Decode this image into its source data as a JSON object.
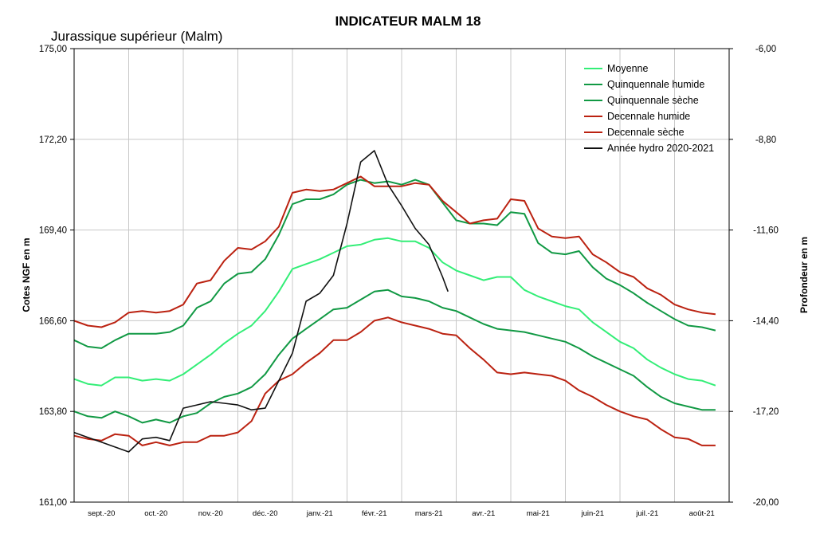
{
  "chart_data": {
    "type": "line",
    "title": "INDICATEUR MALM 18",
    "subtitle": "Jurassique supérieur (Malm)",
    "ylabel": "Cotes NGF en m",
    "y2label": "Profondeur en m",
    "ylim": [
      161,
      175
    ],
    "y2lim": [
      -20,
      -6
    ],
    "yticks": [
      "161,00",
      "163,80",
      "166,60",
      "169,40",
      "172,20",
      "175,00"
    ],
    "y2ticks": [
      "-20,00",
      "-17,20",
      "-14,40",
      "-11,60",
      "-8,80",
      "-6,00"
    ],
    "months": [
      "sept.-20",
      "oct.-20",
      "nov.-20",
      "déc.-20",
      "janv.-21",
      "févr.-21",
      "mars-21",
      "avr.-21",
      "mai-21",
      "juin-21",
      "juil.-21",
      "août-21"
    ],
    "x_range": [
      0,
      12
    ],
    "colors": {
      "moyenne": "#33ee77",
      "quinquennale": "#119944",
      "decennale": "#bb2211",
      "annee": "#111111",
      "grid": "#c8c8c8"
    },
    "series": [
      {
        "name": "Moyenne",
        "color": "#33ee77",
        "x": [
          0,
          0.25,
          0.5,
          0.75,
          1,
          1.25,
          1.5,
          1.75,
          2,
          2.25,
          2.5,
          2.75,
          3,
          3.25,
          3.5,
          3.75,
          4,
          4.25,
          4.5,
          4.75,
          5,
          5.25,
          5.5,
          5.75,
          6,
          6.25,
          6.5,
          6.75,
          7,
          7.25,
          7.5,
          7.75,
          8,
          8.25,
          8.5,
          8.75,
          9,
          9.25,
          9.5,
          9.75,
          10,
          10.25,
          10.5,
          10.75,
          11,
          11.25,
          11.5,
          11.75
        ],
        "values": [
          164.8,
          164.65,
          164.6,
          164.85,
          164.85,
          164.75,
          164.8,
          164.75,
          164.95,
          165.25,
          165.55,
          165.9,
          166.2,
          166.45,
          166.9,
          167.5,
          168.2,
          168.35,
          168.5,
          168.7,
          168.9,
          168.95,
          169.1,
          169.15,
          169.05,
          169.05,
          168.85,
          168.4,
          168.15,
          168.0,
          167.85,
          167.95,
          167.95,
          167.55,
          167.35,
          167.2,
          167.05,
          166.95,
          166.55,
          166.25,
          165.95,
          165.75,
          165.4,
          165.15,
          164.95,
          164.8,
          164.75,
          164.6
        ]
      },
      {
        "name": "Quinquennale humide",
        "color": "#119944",
        "x": [
          0,
          0.25,
          0.5,
          0.75,
          1,
          1.25,
          1.5,
          1.75,
          2,
          2.25,
          2.5,
          2.75,
          3,
          3.25,
          3.5,
          3.75,
          4,
          4.25,
          4.5,
          4.75,
          5,
          5.25,
          5.5,
          5.75,
          6,
          6.25,
          6.5,
          6.75,
          7,
          7.25,
          7.5,
          7.75,
          8,
          8.25,
          8.5,
          8.75,
          9,
          9.25,
          9.5,
          9.75,
          10,
          10.25,
          10.5,
          10.75,
          11,
          11.25,
          11.5,
          11.75
        ],
        "values": [
          166.0,
          165.8,
          165.75,
          166.0,
          166.2,
          166.2,
          166.2,
          166.25,
          166.45,
          167.0,
          167.2,
          167.75,
          168.05,
          168.1,
          168.5,
          169.25,
          170.2,
          170.35,
          170.35,
          170.5,
          170.8,
          170.95,
          170.85,
          170.9,
          170.8,
          170.95,
          170.8,
          170.25,
          169.7,
          169.6,
          169.6,
          169.55,
          169.95,
          169.9,
          169.0,
          168.7,
          168.65,
          168.75,
          168.25,
          167.9,
          167.7,
          167.45,
          167.15,
          166.9,
          166.65,
          166.45,
          166.4,
          166.3
        ]
      },
      {
        "name": "Quinquennale sèche",
        "color": "#119944",
        "x": [
          0,
          0.25,
          0.5,
          0.75,
          1,
          1.25,
          1.5,
          1.75,
          2,
          2.25,
          2.5,
          2.75,
          3,
          3.25,
          3.5,
          3.75,
          4,
          4.25,
          4.5,
          4.75,
          5,
          5.25,
          5.5,
          5.75,
          6,
          6.25,
          6.5,
          6.75,
          7,
          7.25,
          7.5,
          7.75,
          8,
          8.25,
          8.5,
          8.75,
          9,
          9.25,
          9.5,
          9.75,
          10,
          10.25,
          10.5,
          10.75,
          11,
          11.25,
          11.5,
          11.75
        ],
        "values": [
          163.8,
          163.65,
          163.6,
          163.8,
          163.65,
          163.45,
          163.55,
          163.45,
          163.65,
          163.75,
          164.05,
          164.25,
          164.35,
          164.55,
          164.95,
          165.55,
          166.05,
          166.35,
          166.65,
          166.95,
          167.0,
          167.25,
          167.5,
          167.55,
          167.35,
          167.3,
          167.2,
          167.0,
          166.9,
          166.7,
          166.5,
          166.35,
          166.3,
          166.25,
          166.15,
          166.05,
          165.95,
          165.75,
          165.5,
          165.3,
          165.1,
          164.9,
          164.55,
          164.25,
          164.05,
          163.95,
          163.85,
          163.85
        ]
      },
      {
        "name": "Decennale humide",
        "color": "#bb2211",
        "x": [
          0,
          0.25,
          0.5,
          0.75,
          1,
          1.25,
          1.5,
          1.75,
          2,
          2.25,
          2.5,
          2.75,
          3,
          3.25,
          3.5,
          3.75,
          4,
          4.25,
          4.5,
          4.75,
          5,
          5.25,
          5.5,
          5.75,
          6,
          6.25,
          6.5,
          6.75,
          7,
          7.25,
          7.5,
          7.75,
          8,
          8.25,
          8.5,
          8.75,
          9,
          9.25,
          9.5,
          9.75,
          10,
          10.25,
          10.5,
          10.75,
          11,
          11.25,
          11.5,
          11.75
        ],
        "values": [
          166.6,
          166.45,
          166.4,
          166.55,
          166.85,
          166.9,
          166.85,
          166.9,
          167.1,
          167.75,
          167.85,
          168.45,
          168.85,
          168.8,
          169.05,
          169.5,
          170.55,
          170.65,
          170.6,
          170.65,
          170.85,
          171.05,
          170.75,
          170.75,
          170.75,
          170.85,
          170.8,
          170.3,
          169.95,
          169.6,
          169.7,
          169.75,
          170.35,
          170.3,
          169.45,
          169.2,
          169.15,
          169.2,
          168.65,
          168.4,
          168.1,
          167.95,
          167.6,
          167.4,
          167.1,
          166.95,
          166.85,
          166.8
        ]
      },
      {
        "name": "Decennale sèche",
        "color": "#bb2211",
        "x": [
          0,
          0.25,
          0.5,
          0.75,
          1,
          1.25,
          1.5,
          1.75,
          2,
          2.25,
          2.5,
          2.75,
          3,
          3.25,
          3.5,
          3.75,
          4,
          4.25,
          4.5,
          4.75,
          5,
          5.25,
          5.5,
          5.75,
          6,
          6.25,
          6.5,
          6.75,
          7,
          7.25,
          7.5,
          7.75,
          8,
          8.25,
          8.5,
          8.75,
          9,
          9.25,
          9.5,
          9.75,
          10,
          10.25,
          10.5,
          10.75,
          11,
          11.25,
          11.5,
          11.75
        ],
        "values": [
          163.05,
          162.95,
          162.9,
          163.1,
          163.05,
          162.75,
          162.85,
          162.75,
          162.85,
          162.85,
          163.05,
          163.05,
          163.15,
          163.5,
          164.35,
          164.75,
          164.95,
          165.3,
          165.6,
          166.0,
          166.0,
          166.25,
          166.6,
          166.7,
          166.55,
          166.45,
          166.35,
          166.2,
          166.15,
          165.75,
          165.4,
          165.0,
          164.95,
          165.0,
          164.95,
          164.9,
          164.75,
          164.45,
          164.25,
          164.0,
          163.8,
          163.65,
          163.55,
          163.25,
          163.0,
          162.95,
          162.75,
          162.75
        ]
      },
      {
        "name": "Année hydro 2020-2021",
        "color": "#111111",
        "x": [
          0,
          0.25,
          0.5,
          0.75,
          1,
          1.25,
          1.5,
          1.75,
          2,
          2.25,
          2.5,
          2.75,
          3,
          3.25,
          3.5,
          3.75,
          4,
          4.25,
          4.5,
          4.75,
          5,
          5.25,
          5.5,
          5.75,
          6,
          6.25,
          6.5,
          6.75,
          6.85
        ],
        "values": [
          163.15,
          163.0,
          162.85,
          162.7,
          162.55,
          162.95,
          163.0,
          162.9,
          163.9,
          164.0,
          164.1,
          164.05,
          164.0,
          163.85,
          163.9,
          164.75,
          165.6,
          167.2,
          167.45,
          168.0,
          169.6,
          171.5,
          171.85,
          170.8,
          170.15,
          169.45,
          168.95,
          167.95,
          167.5
        ]
      }
    ]
  }
}
